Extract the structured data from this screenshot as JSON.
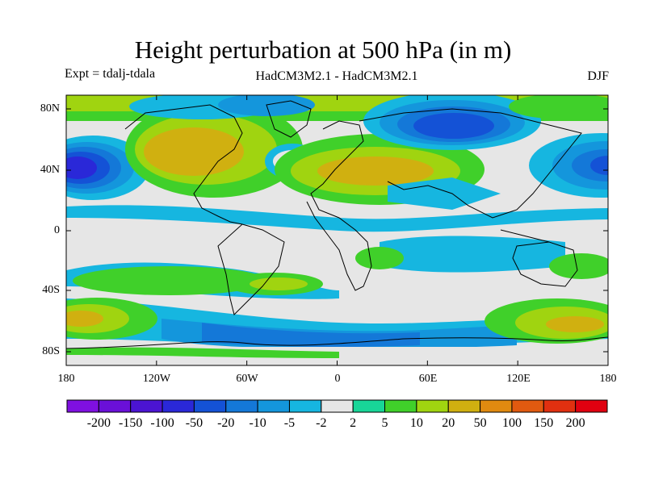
{
  "title": "Height perturbation at 500 hPa (in m)",
  "subtitle_left": "Expt = tdalj-tdala",
  "subtitle_center": "HadCM3M2.1 - HadCM3M2.1",
  "subtitle_right": "DJF",
  "lat_ticks": [
    "80N",
    "40N",
    "0",
    "40S",
    "80S"
  ],
  "lon_ticks": [
    "180",
    "120W",
    "60W",
    "0",
    "60E",
    "120E",
    "180"
  ],
  "colorbar": {
    "labels": [
      "-200",
      "-150",
      "-100",
      "-50",
      "-20",
      "-10",
      "-5",
      "-2",
      "2",
      "5",
      "10",
      "20",
      "50",
      "100",
      "150",
      "200"
    ],
    "colors": [
      "#7f10e0",
      "#6a10d8",
      "#4b14d2",
      "#2a28d8",
      "#1452d6",
      "#1478d8",
      "#1496dc",
      "#16b6e0",
      "#e6e6e6",
      "#18d698",
      "#40d02a",
      "#a0d410",
      "#d0b010",
      "#e08a10",
      "#e05a10",
      "#e03010",
      "#e00010"
    ]
  },
  "colors": {
    "neutral": "#e6e6e6",
    "coastline": "#000000"
  }
}
